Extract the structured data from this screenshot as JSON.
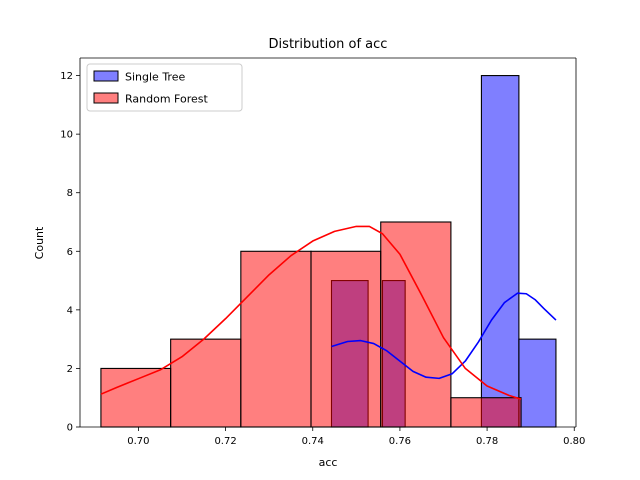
{
  "chart_data": {
    "type": "histogram",
    "title": "Distribution of acc",
    "xlabel": "acc",
    "ylabel": "Count",
    "xlim": [
      0.6866,
      0.8004
    ],
    "ylim": [
      0,
      12.6
    ],
    "xticks": [
      0.7,
      0.72,
      0.74,
      0.76,
      0.78,
      0.8
    ],
    "xtick_labels": [
      "0.70",
      "0.72",
      "0.74",
      "0.76",
      "0.78",
      "0.80"
    ],
    "yticks": [
      0,
      2,
      4,
      6,
      8,
      10,
      12
    ],
    "ytick_labels": [
      "0",
      "2",
      "4",
      "6",
      "8",
      "10",
      "12"
    ],
    "grid": false,
    "legend_position": "top-left",
    "series": [
      {
        "name": "Single Tree",
        "color": "#0000ff",
        "bins": [
          {
            "x0": 0.7443,
            "x1": 0.7527,
            "count": 5
          },
          {
            "x0": 0.7527,
            "x1": 0.756,
            "count": 0
          },
          {
            "x0": 0.756,
            "x1": 0.7612,
            "count": 5
          },
          {
            "x0": 0.7612,
            "x1": 0.7787,
            "count": 0
          },
          {
            "x0": 0.7787,
            "x1": 0.7873,
            "count": 12
          },
          {
            "x0": 0.7873,
            "x1": 0.7958,
            "count": 3
          }
        ],
        "kde": {
          "x": [
            0.7443,
            0.748,
            0.751,
            0.754,
            0.757,
            0.76,
            0.763,
            0.766,
            0.769,
            0.772,
            0.775,
            0.778,
            0.781,
            0.784,
            0.787,
            0.789,
            0.791,
            0.793,
            0.7958
          ],
          "y": [
            2.75,
            2.92,
            2.95,
            2.85,
            2.6,
            2.25,
            1.9,
            1.7,
            1.66,
            1.82,
            2.25,
            2.9,
            3.65,
            4.25,
            4.57,
            4.55,
            4.35,
            4.05,
            3.65
          ]
        }
      },
      {
        "name": "Random Forest",
        "color": "#ff0000",
        "bins": [
          {
            "x0": 0.6914,
            "x1": 0.7074,
            "count": 2
          },
          {
            "x0": 0.7074,
            "x1": 0.7235,
            "count": 3
          },
          {
            "x0": 0.7235,
            "x1": 0.7396,
            "count": 6
          },
          {
            "x0": 0.7396,
            "x1": 0.7556,
            "count": 6
          },
          {
            "x0": 0.7556,
            "x1": 0.7717,
            "count": 7
          },
          {
            "x0": 0.7717,
            "x1": 0.7878,
            "count": 1
          }
        ],
        "kde": {
          "x": [
            0.6914,
            0.695,
            0.7,
            0.705,
            0.71,
            0.715,
            0.72,
            0.725,
            0.73,
            0.735,
            0.74,
            0.745,
            0.75,
            0.753,
            0.756,
            0.76,
            0.765,
            0.77,
            0.775,
            0.78,
            0.785,
            0.7878
          ],
          "y": [
            1.12,
            1.35,
            1.65,
            1.95,
            2.4,
            3.0,
            3.7,
            4.45,
            5.2,
            5.85,
            6.35,
            6.68,
            6.85,
            6.85,
            6.6,
            5.9,
            4.5,
            3.05,
            2.0,
            1.4,
            1.08,
            0.95
          ]
        }
      }
    ]
  }
}
